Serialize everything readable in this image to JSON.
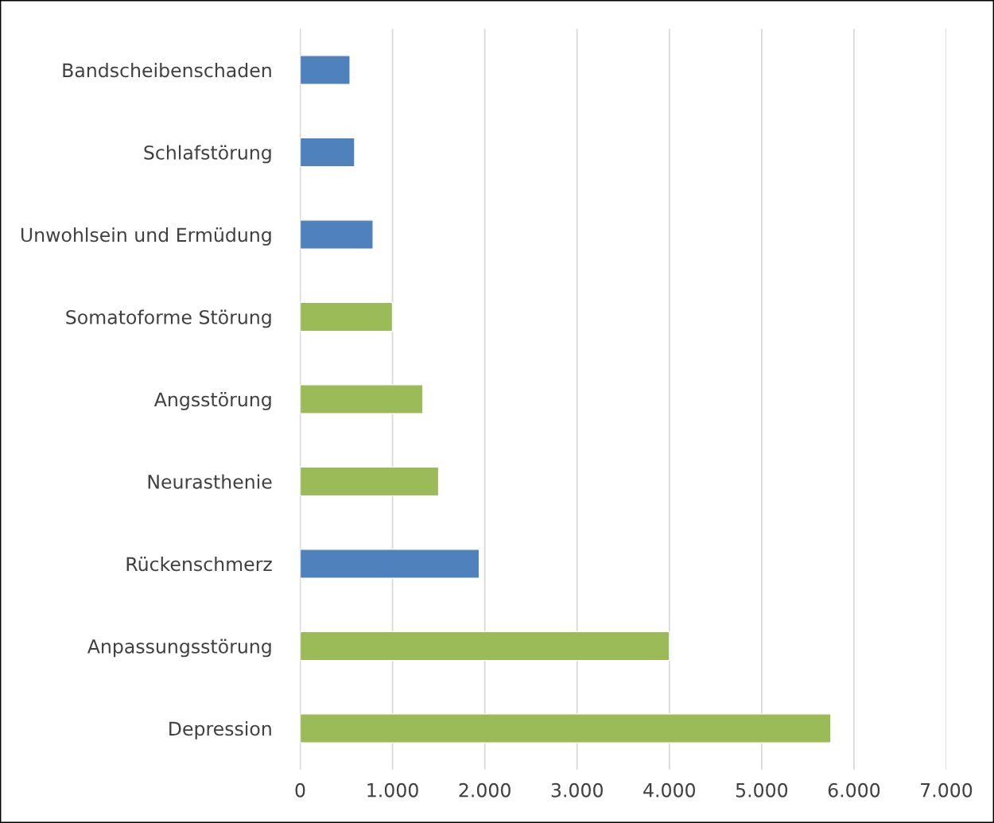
{
  "chart_data": {
    "type": "bar",
    "orientation": "horizontal",
    "categories": [
      "Bandscheibenschaden",
      "Schlafstörung",
      "Unwohlsein und Ermüdung",
      "Somatoforme Störung",
      "Angsstörung",
      "Neurasthenie",
      "Rückenschmerz",
      "Anpassungsstörung",
      "Depression"
    ],
    "values": [
      540,
      590,
      790,
      1000,
      1330,
      1500,
      1940,
      4000,
      5750
    ],
    "colors": [
      "#4f81bd",
      "#4f81bd",
      "#4f81bd",
      "#9bbb59",
      "#9bbb59",
      "#9bbb59",
      "#4f81bd",
      "#9bbb59",
      "#9bbb59"
    ],
    "xlim": [
      0,
      7000
    ],
    "xticks": [
      0,
      {
        "value": 1000,
        "label": "1.000"
      },
      {
        "value": 2000,
        "label": "2.000"
      },
      {
        "value": 3000,
        "label": "3.000"
      },
      {
        "value": 4000,
        "label": "4.000"
      },
      {
        "value": 5000,
        "label": "5.000"
      },
      {
        "value": 6000,
        "label": "6.000"
      },
      {
        "value": 7000,
        "label": "7.000"
      }
    ],
    "grid": "x",
    "legend": false
  }
}
